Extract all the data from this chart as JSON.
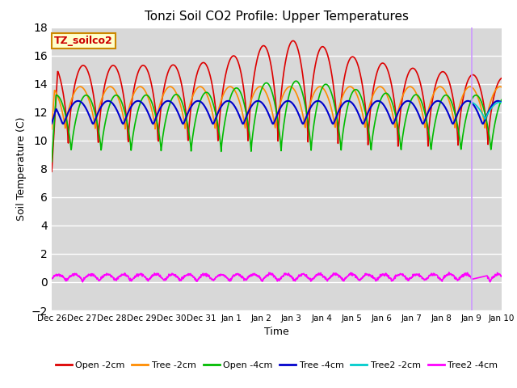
{
  "title": "Tonzi Soil CO2 Profile: Upper Temperatures",
  "xlabel": "Time",
  "ylabel": "Soil Temperature (C)",
  "ylim": [
    -2,
    18
  ],
  "bg_color": "#d8d8d8",
  "fig_bg": "#ffffff",
  "grid_color": "#ffffff",
  "annotation_label": "TZ_soilco2",
  "annotation_box_color": "#ffffcc",
  "annotation_border": "#cc8800",
  "x_tick_labels": [
    "Dec 26",
    "Dec 27",
    "Dec 28",
    "Dec 29",
    "Dec 30",
    "Dec 31",
    "Jan 1",
    "Jan 2",
    "Jan 3",
    "Jan 4",
    "Jan 5",
    "Jan 6",
    "Jan 7",
    "Jan 8",
    "Jan 9",
    "Jan 10"
  ],
  "series_names": [
    "Open -2cm",
    "Tree -2cm",
    "Open -4cm",
    "Tree -4cm",
    "Tree2 -2cm",
    "Tree2 -4cm"
  ],
  "series_colors": [
    "#dd0000",
    "#ff8c00",
    "#00bb00",
    "#0000cc",
    "#00cccc",
    "#ff00ff"
  ],
  "series_lw": [
    1.2,
    1.2,
    1.2,
    1.5,
    1.2,
    1.2
  ],
  "legend_ncol": 6,
  "vline_x": 14.0,
  "vline_color": "#cc99ff"
}
